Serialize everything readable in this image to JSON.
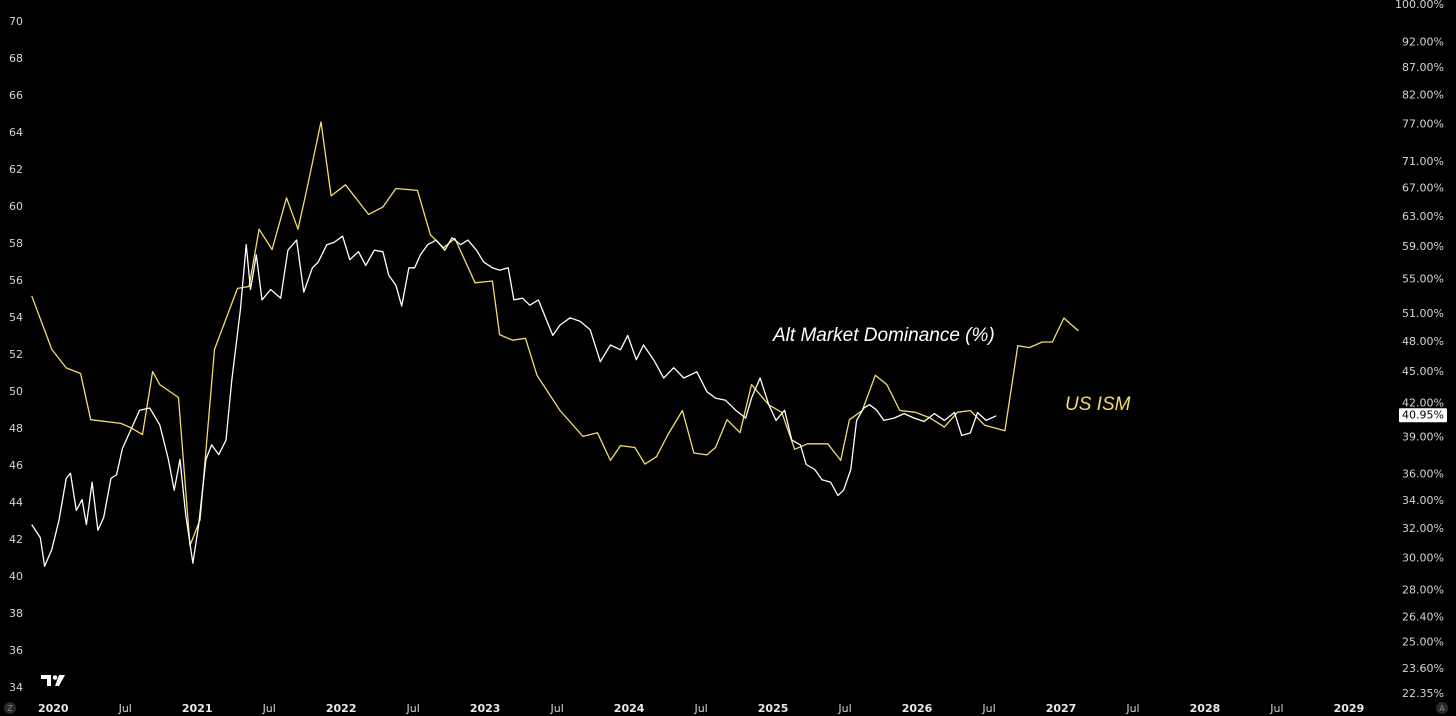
{
  "chart_data": {
    "type": "line",
    "xlim": [
      2019.63,
      2029.32
    ],
    "xticks": [
      2020,
      {
        "value": 2020.5,
        "label": "Jul"
      },
      2021,
      {
        "value": 2021.5,
        "label": "Jul"
      },
      2022,
      {
        "value": 2022.5,
        "label": "Jul"
      },
      2023,
      {
        "value": 2023.5,
        "label": "Jul"
      },
      2024,
      {
        "value": 2024.5,
        "label": "Jul"
      },
      2025,
      {
        "value": 2025.5,
        "label": "Jul"
      },
      2026,
      {
        "value": 2026.5,
        "label": "Jul"
      },
      2027,
      {
        "value": 2027.5,
        "label": "Jul"
      },
      2028,
      {
        "value": 2028.5,
        "label": "Jul"
      },
      2029
    ],
    "ylim": [
      33.35,
      71.19
    ],
    "yticks": [
      34,
      36,
      38,
      40,
      42,
      44,
      46,
      48,
      50,
      52,
      54,
      56,
      58,
      60,
      62,
      64,
      66,
      68,
      70
    ],
    "y2lim": [
      22.07,
      100.87
    ],
    "y2log": true,
    "y2ticks": [
      {
        "value": 100,
        "label": "100.00%"
      },
      {
        "value": 92,
        "label": "92.00%"
      },
      {
        "value": 87,
        "label": "87.00%"
      },
      {
        "value": 82,
        "label": "82.00%"
      },
      {
        "value": 77,
        "label": "77.00%"
      },
      {
        "value": 71,
        "label": "71.00%"
      },
      {
        "value": 67,
        "label": "67.00%"
      },
      {
        "value": 63,
        "label": "63.00%"
      },
      {
        "value": 59,
        "label": "59.00%"
      },
      {
        "value": 55,
        "label": "55.00%"
      },
      {
        "value": 51,
        "label": "51.00%"
      },
      {
        "value": 48,
        "label": "48.00%"
      },
      {
        "value": 45,
        "label": "45.00%"
      },
      {
        "value": 42,
        "label": "42.00%"
      },
      {
        "value": 39,
        "label": "39.00%"
      },
      {
        "value": 36,
        "label": "36.00%"
      },
      {
        "value": 34,
        "label": "34.00%"
      },
      {
        "value": 32,
        "label": "32.00%"
      },
      {
        "value": 30,
        "label": "30.00%"
      },
      {
        "value": 28,
        "label": "28.00%"
      },
      {
        "value": 26.4,
        "label": "26.40%"
      },
      {
        "value": 25,
        "label": "25.00%"
      },
      {
        "value": 23.6,
        "label": "23.60%"
      },
      {
        "value": 22.35,
        "label": "22.35%"
      }
    ],
    "buttons": [
      "Z",
      "A"
    ],
    "series": [
      {
        "name": "US ISM",
        "color": "#f2dc6b",
        "axis": "y",
        "x": [
          2019.85,
          2019.99,
          2020.09,
          2020.19,
          2020.26,
          2020.47,
          2020.53,
          2020.62,
          2020.69,
          2020.74,
          2020.87,
          2020.95,
          2021.02,
          2021.12,
          2021.28,
          2021.36,
          2021.43,
          2021.52,
          2021.62,
          2021.7,
          2021.76,
          2021.86,
          2021.93,
          2022.03,
          2022.19,
          2022.29,
          2022.38,
          2022.53,
          2022.62,
          2022.71,
          2022.79,
          2022.93,
          2023.05,
          2023.1,
          2023.19,
          2023.28,
          2023.36,
          2023.52,
          2023.68,
          2023.78,
          2023.87,
          2023.94,
          2024.04,
          2024.11,
          2024.19,
          2024.27,
          2024.37,
          2024.45,
          2024.54,
          2024.6,
          2024.68,
          2024.77,
          2024.85,
          2024.97,
          2025.06,
          2025.15,
          2025.24,
          2025.38,
          2025.47,
          2025.53,
          2025.62,
          2025.71,
          2025.79,
          2025.88,
          2025.99,
          2026.09,
          2026.19,
          2026.28,
          2026.37,
          2026.47,
          2026.61,
          2026.7,
          2026.78,
          2026.87,
          2026.94,
          2027.02,
          2027.12
        ],
        "values": [
          55.2,
          52.3,
          51.3,
          51.0,
          48.5,
          48.3,
          48.1,
          47.7,
          51.1,
          50.4,
          49.7,
          41.7,
          43.1,
          52.3,
          55.6,
          55.7,
          58.8,
          57.7,
          60.5,
          58.8,
          60.9,
          64.6,
          60.6,
          61.2,
          59.6,
          60.0,
          61.0,
          60.9,
          58.5,
          57.8,
          58.3,
          55.9,
          56.0,
          53.1,
          52.8,
          52.9,
          50.9,
          49.0,
          47.6,
          47.8,
          46.3,
          47.1,
          47.0,
          46.1,
          46.5,
          47.7,
          49.0,
          46.7,
          46.6,
          47.0,
          48.5,
          47.8,
          50.4,
          49.3,
          48.9,
          46.9,
          47.2,
          47.2,
          46.3,
          48.5,
          49.0,
          50.9,
          50.4,
          49.0,
          48.9,
          48.6,
          48.1,
          48.9,
          49.0,
          48.2,
          47.9,
          52.5,
          52.4,
          52.7,
          52.7,
          54.0,
          53.3
        ]
      },
      {
        "name": "Alt Market Dominance (%)",
        "color": "#ffffff",
        "axis": "y2",
        "price_label": {
          "value": 40.95,
          "label": "40.95%"
        },
        "x": [
          2019.85,
          2019.91,
          2019.94,
          2019.99,
          2020.04,
          2020.09,
          2020.12,
          2020.16,
          2020.2,
          2020.23,
          2020.27,
          2020.31,
          2020.35,
          2020.4,
          2020.44,
          2020.48,
          2020.54,
          2020.6,
          2020.67,
          2020.74,
          2020.8,
          2020.84,
          2020.88,
          2020.92,
          2020.97,
          2021.01,
          2021.06,
          2021.1,
          2021.15,
          2021.2,
          2021.24,
          2021.3,
          2021.34,
          2021.37,
          2021.41,
          2021.45,
          2021.51,
          2021.58,
          2021.63,
          2021.69,
          2021.74,
          2021.8,
          2021.84,
          2021.9,
          2021.95,
          2022.01,
          2022.06,
          2022.12,
          2022.17,
          2022.23,
          2022.29,
          2022.33,
          2022.38,
          2022.42,
          2022.47,
          2022.51,
          2022.55,
          2022.6,
          2022.66,
          2022.72,
          2022.77,
          2022.83,
          2022.88,
          2022.94,
          2022.99,
          2023.05,
          2023.1,
          2023.16,
          2023.2,
          2023.26,
          2023.31,
          2023.37,
          2023.42,
          2023.47,
          2023.52,
          2023.59,
          2023.66,
          2023.73,
          2023.8,
          2023.87,
          2023.94,
          2023.99,
          2024.05,
          2024.1,
          2024.17,
          2024.24,
          2024.31,
          2024.38,
          2024.47,
          2024.54,
          2024.6,
          2024.67,
          2024.74,
          2024.81,
          2024.85,
          2024.91,
          2024.97,
          2025.02,
          2025.08,
          2025.13,
          2025.19,
          2025.23,
          2025.29,
          2025.34,
          2025.4,
          2025.45,
          2025.49,
          2025.54,
          2025.58,
          2025.63,
          2025.67,
          2025.72,
          2025.77,
          2025.84,
          2025.91,
          2025.98,
          2026.05,
          2026.12,
          2026.19,
          2026.26,
          2026.31,
          2026.37,
          2026.42,
          2026.48,
          2026.55
        ],
        "values": [
          32.3,
          31.4,
          29.5,
          30.6,
          32.6,
          35.7,
          36.1,
          33.3,
          34.1,
          32.3,
          35.4,
          31.9,
          32.8,
          35.7,
          36.0,
          38.1,
          39.7,
          41.4,
          41.6,
          40.1,
          37.2,
          34.8,
          37.2,
          33.0,
          29.7,
          32.3,
          37.2,
          38.4,
          37.6,
          38.8,
          44.2,
          51.5,
          59.3,
          53.8,
          58.0,
          52.6,
          53.8,
          52.8,
          58.6,
          59.9,
          53.5,
          56.4,
          57.1,
          59.3,
          59.6,
          60.4,
          57.4,
          58.4,
          56.7,
          58.6,
          58.4,
          55.5,
          54.3,
          51.9,
          56.4,
          56.4,
          58.0,
          59.3,
          59.9,
          58.6,
          60.2,
          59.3,
          59.9,
          58.6,
          57.1,
          56.4,
          56.1,
          56.4,
          52.6,
          52.8,
          52.0,
          52.6,
          50.6,
          48.7,
          49.8,
          50.6,
          50.2,
          49.3,
          46.0,
          47.7,
          47.2,
          48.7,
          46.2,
          47.7,
          46.2,
          44.4,
          45.4,
          44.4,
          45.0,
          43.1,
          42.5,
          42.3,
          41.4,
          40.7,
          42.5,
          44.4,
          41.9,
          40.5,
          41.4,
          38.8,
          38.4,
          36.8,
          36.4,
          35.6,
          35.4,
          34.4,
          34.8,
          36.4,
          40.5,
          41.6,
          41.9,
          41.4,
          40.5,
          40.7,
          41.1,
          40.7,
          40.4,
          41.1,
          40.5,
          41.2,
          39.2,
          39.4,
          41.2,
          40.5,
          40.9
        ]
      }
    ]
  }
}
